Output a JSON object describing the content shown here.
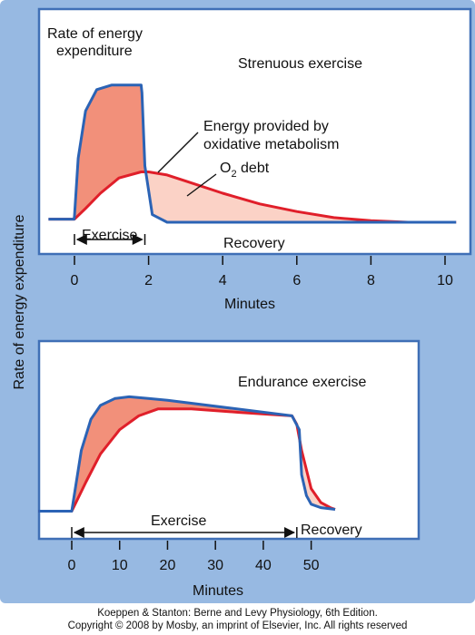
{
  "shared": {
    "ylabel": "Rate of energy expenditure",
    "colors": {
      "background": "#97b9e2",
      "frame": "#3f6fb6",
      "expenditure_line": "#2b63b5",
      "oxidative_line": "#e01f2a",
      "exercise_fill": "#f2907a",
      "debt_fill": "#fbd2c6"
    }
  },
  "chart_data": [
    {
      "type": "area",
      "title": "Strenuous exercise",
      "xlabel": "Minutes",
      "xlim": [
        0,
        10
      ],
      "xticks": [
        0,
        2,
        4,
        6,
        8,
        10
      ],
      "xticklabels": [
        "0",
        "2",
        "4",
        "6",
        "8",
        "10"
      ],
      "series": [
        {
          "name": "Rate of energy expenditure",
          "x": [
            -0.7,
            -0.01,
            0,
            0.1,
            0.3,
            0.6,
            1.0,
            1.8,
            1.82,
            1.9,
            2.1,
            2.5,
            10.3
          ],
          "y": [
            0.05,
            0.05,
            0.07,
            0.45,
            0.76,
            0.9,
            0.93,
            0.93,
            0.88,
            0.4,
            0.08,
            0.03,
            0.03
          ]
        },
        {
          "name": "Energy provided by oxidative metabolism",
          "x": [
            -0.7,
            0,
            0.3,
            0.7,
            1.2,
            1.8,
            2.0,
            2.5,
            3.0,
            4.0,
            5.0,
            6.0,
            7.0,
            8.0,
            9.0,
            10.3
          ],
          "y": [
            0.05,
            0.05,
            0.12,
            0.22,
            0.32,
            0.36,
            0.36,
            0.34,
            0.3,
            0.22,
            0.15,
            0.1,
            0.06,
            0.04,
            0.03,
            0.03
          ]
        }
      ],
      "annotations": {
        "rate_label": [
          "Rate of energy",
          "expenditure"
        ],
        "oxidative_label": [
          "Energy provided by",
          "oxidative metabolism"
        ],
        "debt_label_prefix": "O",
        "debt_label_sub": "2",
        "debt_label_suffix": " debt",
        "exercise_span_label": "Exercise",
        "exercise_span": [
          0,
          1.9
        ],
        "recovery_label": "Recovery"
      }
    },
    {
      "type": "area",
      "title": "Endurance exercise",
      "xlabel": "Minutes",
      "xlim": [
        0,
        55
      ],
      "xticks": [
        0,
        10,
        20,
        30,
        40,
        50
      ],
      "xticklabels": [
        "0",
        "10",
        "20",
        "30",
        "40",
        "50"
      ],
      "series": [
        {
          "name": "Rate of energy expenditure",
          "x": [
            -7,
            0,
            2,
            4,
            6,
            9,
            12,
            16,
            20,
            46,
            47.5,
            48,
            49,
            50,
            52,
            55
          ],
          "y": [
            0.05,
            0.05,
            0.4,
            0.58,
            0.66,
            0.7,
            0.71,
            0.7,
            0.69,
            0.6,
            0.52,
            0.26,
            0.14,
            0.09,
            0.07,
            0.06
          ]
        },
        {
          "name": "Energy provided by oxidative metabolism",
          "x": [
            -7,
            0,
            3,
            6,
            10,
            14,
            18,
            25,
            35,
            46,
            47,
            48,
            50,
            52,
            54,
            55
          ],
          "y": [
            0.05,
            0.05,
            0.22,
            0.38,
            0.52,
            0.6,
            0.64,
            0.64,
            0.62,
            0.6,
            0.55,
            0.4,
            0.18,
            0.1,
            0.07,
            0.06
          ]
        }
      ],
      "annotations": {
        "exercise_span_label": "Exercise",
        "exercise_span": [
          0,
          47
        ],
        "recovery_label": "Recovery"
      }
    }
  ],
  "footer": {
    "line1": "Koeppen & Stanton: Berne and Levy Physiology, 6th Edition.",
    "line2": "Copyright © 2008 by Mosby, an imprint of Elsevier, Inc. All rights reserved"
  }
}
